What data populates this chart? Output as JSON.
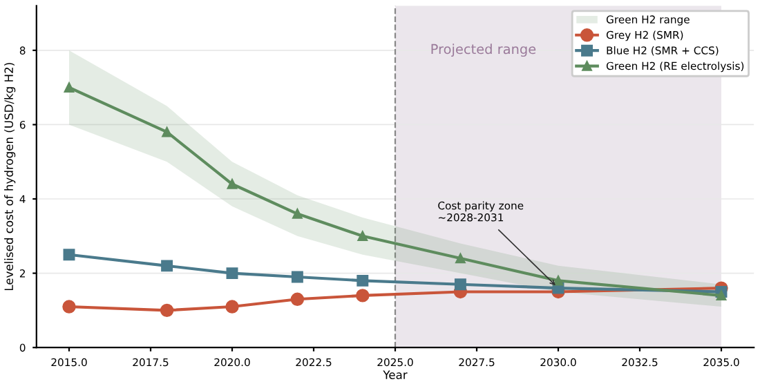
{
  "chart_data": {
    "type": "line",
    "xlabel": "Year",
    "ylabel": "Levelised cost of hydrogen (USD/kg H2)",
    "x": [
      2015,
      2018,
      2020,
      2022,
      2024,
      2027,
      2030,
      2035
    ],
    "series": [
      {
        "name": "Grey H2 (SMR)",
        "color": "#c9553a",
        "marker": "circle",
        "values": [
          1.1,
          1.0,
          1.1,
          1.3,
          1.4,
          1.5,
          1.5,
          1.6
        ]
      },
      {
        "name": "Blue H2 (SMR + CCS)",
        "color": "#4a7a8c",
        "marker": "square",
        "values": [
          2.5,
          2.2,
          2.0,
          1.9,
          1.8,
          1.7,
          1.6,
          1.5
        ]
      },
      {
        "name": "Green H2 (RE electrolysis)",
        "color": "#5e8c5e",
        "marker": "triangle",
        "values": [
          7.0,
          5.8,
          4.4,
          3.6,
          3.0,
          2.4,
          1.8,
          1.4
        ],
        "lower": [
          6.0,
          5.0,
          3.8,
          3.0,
          2.5,
          2.0,
          1.5,
          1.1
        ],
        "upper": [
          8.0,
          6.5,
          5.0,
          4.1,
          3.5,
          2.8,
          2.2,
          1.7
        ]
      }
    ],
    "xlim": [
      2014,
      2036
    ],
    "ylim": [
      0,
      9.2
    ],
    "xticks": [
      {
        "value": 2015,
        "label": "2015.0"
      },
      {
        "value": 2017.5,
        "label": "2017.5"
      },
      {
        "value": 2020,
        "label": "2020.0"
      },
      {
        "value": 2022.5,
        "label": "2022.5"
      },
      {
        "value": 2025,
        "label": "2025.0"
      },
      {
        "value": 2027.5,
        "label": "2027.5"
      },
      {
        "value": 2030,
        "label": "2030.0"
      },
      {
        "value": 2032.5,
        "label": "2032.5"
      },
      {
        "value": 2035,
        "label": "2035.0"
      }
    ],
    "yticks": [
      0,
      2,
      4,
      6,
      8
    ],
    "grid": "y",
    "legend": "top right",
    "bands": [
      {
        "axis": "x",
        "from": 2025,
        "to": 2035,
        "label": "Projected range",
        "color": "#ebe6ec"
      }
    ],
    "ref_lines": [
      {
        "axis": "x",
        "value": 2025,
        "label": null,
        "color": "#888888",
        "line_style": "dashed"
      }
    ],
    "annotations": [
      {
        "text": "Cost parity zone\n~2028-2031",
        "x": 2030,
        "y": 1.6
      },
      "Green H2 range"
    ]
  }
}
